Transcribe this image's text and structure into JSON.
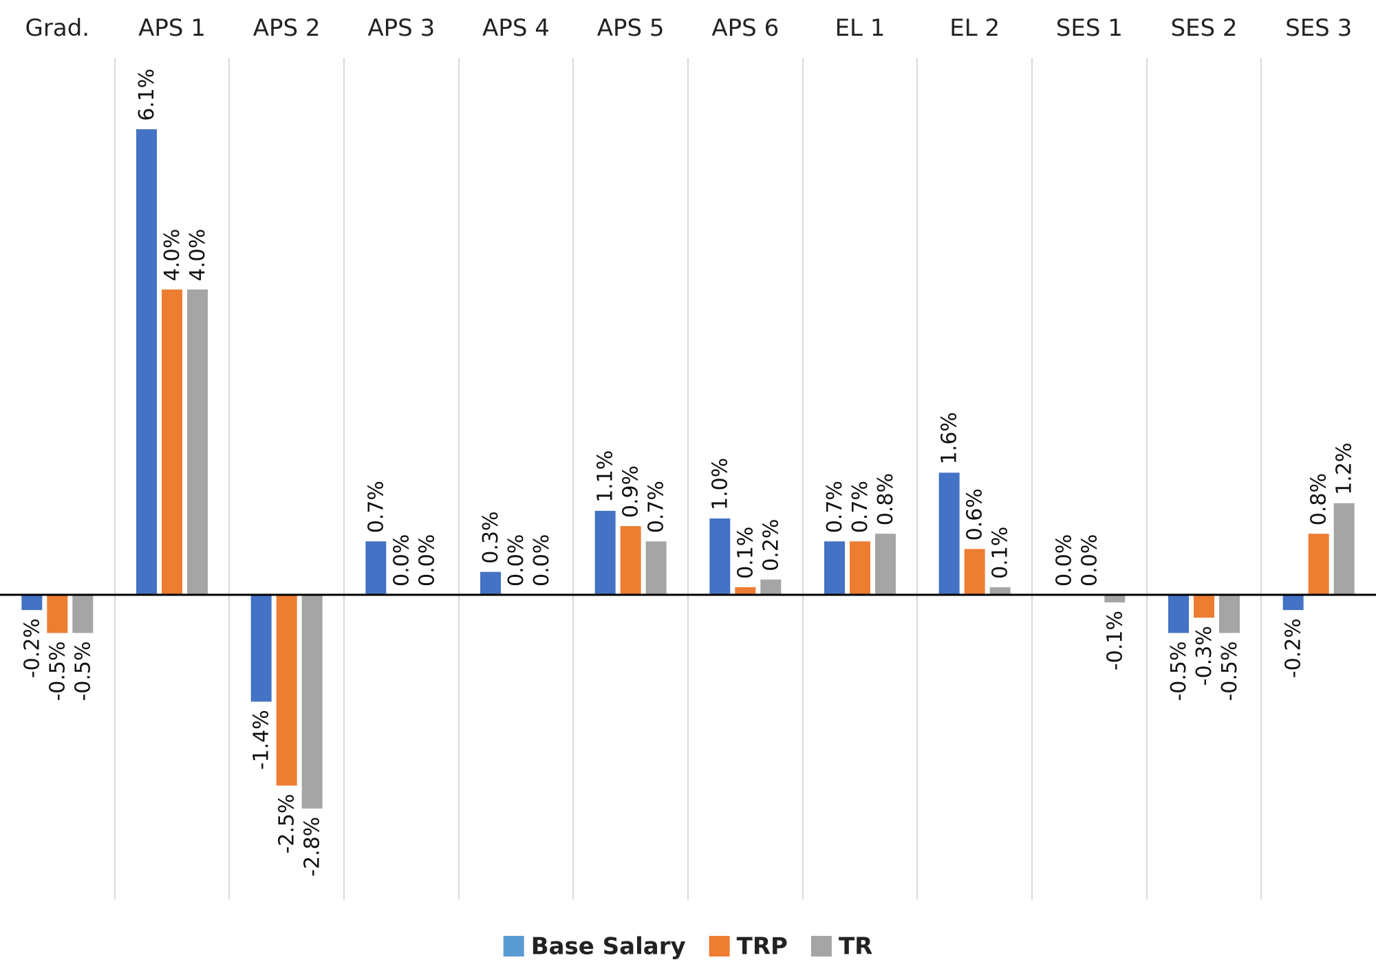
{
  "chart_data": {
    "type": "bar",
    "categories": [
      "Grad.",
      "APS 1",
      "APS 2",
      "APS 3",
      "APS 4",
      "APS 5",
      "APS 6",
      "EL 1",
      "EL 2",
      "SES 1",
      "SES 2",
      "SES 3"
    ],
    "series": [
      {
        "name": "Base Salary",
        "color": "#4472C4",
        "legend_color": "#5B9BD5",
        "values": [
          -0.2,
          6.1,
          -1.4,
          0.7,
          0.3,
          1.1,
          1.0,
          0.7,
          1.6,
          0.0,
          -0.5,
          -0.2
        ],
        "labels": [
          "-0.2%",
          "6.1%",
          "-1.4%",
          "0.7%",
          "0.3%",
          "1.1%",
          "1.0%",
          "0.7%",
          "1.6%",
          "0.0%",
          "-0.5%",
          "-0.2%"
        ]
      },
      {
        "name": "TRP",
        "color": "#ED7D31",
        "legend_color": "#ED7D31",
        "values": [
          -0.5,
          4.0,
          -2.5,
          0.0,
          0.0,
          0.9,
          0.1,
          0.7,
          0.6,
          0.0,
          -0.3,
          0.8
        ],
        "labels": [
          "-0.5%",
          "4.0%",
          "-2.5%",
          "0.0%",
          "0.0%",
          "0.9%",
          "0.1%",
          "0.7%",
          "0.6%",
          "0.0%",
          "-0.3%",
          "0.8%"
        ]
      },
      {
        "name": "TR",
        "color": "#A5A5A5",
        "legend_color": "#A5A5A5",
        "values": [
          -0.5,
          4.0,
          -2.8,
          0.0,
          0.0,
          0.7,
          0.2,
          0.8,
          0.1,
          -0.1,
          -0.5,
          1.2
        ],
        "labels": [
          "-0.5%",
          "4.0%",
          "-2.8%",
          "0.0%",
          "0.0%",
          "0.7%",
          "0.2%",
          "0.8%",
          "0.1%",
          "-0.1%",
          "-0.5%",
          "1.2%"
        ]
      }
    ],
    "title": "",
    "xlabel": "",
    "ylabel": "",
    "ylim": [
      -3.9,
      7.0
    ],
    "grid": "vertical category separators",
    "legend": "bottom-center"
  }
}
